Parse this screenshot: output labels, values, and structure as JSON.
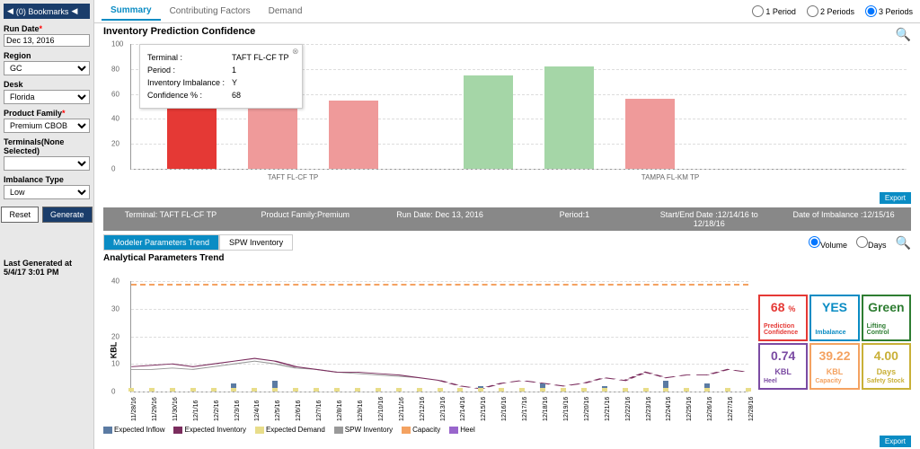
{
  "sidebar": {
    "bookmarks": "(0) Bookmarks",
    "fields": {
      "runDate": {
        "label": "Run Date",
        "value": "Dec 13, 2016",
        "req": true
      },
      "region": {
        "label": "Region",
        "value": "GC",
        "req": false
      },
      "desk": {
        "label": "Desk",
        "value": "Florida",
        "req": false
      },
      "productFamily": {
        "label": "Product Family",
        "value": "Premium CBOB",
        "req": true
      },
      "terminals": {
        "label": "Terminals(None Selected)",
        "value": "",
        "req": false
      },
      "imbalanceType": {
        "label": "Imbalance Type",
        "value": "Low",
        "req": false
      }
    },
    "reset": "Reset",
    "generate": "Generate",
    "lastGen": "Last Generated at 5/4/17 3:01 PM"
  },
  "tabs": {
    "summary": "Summary",
    "contributing": "Contributing Factors",
    "demand": "Demand"
  },
  "periods": {
    "p1": "1 Period",
    "p2": "2 Periods",
    "p3": "3 Periods",
    "selected": "p3"
  },
  "chart1": {
    "title": "Inventory Prediction Confidence",
    "ylim": [
      0,
      100
    ],
    "yticks": [
      0,
      20,
      40,
      60,
      80,
      100
    ],
    "bars": [
      {
        "v": 68,
        "color": "#e53935"
      },
      {
        "v": 48,
        "color": "#ef9a9a"
      },
      {
        "v": 55,
        "color": "#ef9a9a"
      },
      {
        "v": 75,
        "color": "#a5d6a7"
      },
      {
        "v": 82,
        "color": "#a5d6a7"
      },
      {
        "v": 56,
        "color": "#ef9a9a"
      }
    ],
    "xlabels": [
      "TAFT FL-CF TP",
      "TAMPA FL-KM TP"
    ],
    "tooltip": {
      "terminal": "TAFT FL-CF TP",
      "period": "1",
      "imbalance": "Y",
      "confidence": "68"
    }
  },
  "infobar": {
    "terminal": "Terminal: TAFT FL-CF TP",
    "pf": "Product Family:Premium",
    "rd": "Run Date: Dec 13, 2016",
    "period": "Period:1",
    "dates": "Start/End Date :12/14/16 to 12/18/16",
    "doi": "Date of Imbalance :12/15/16"
  },
  "subtabs": {
    "a": "Modeler Parameters Trend",
    "b": "SPW Inventory"
  },
  "vd": {
    "v": "Volume",
    "d": "Days"
  },
  "chart2": {
    "title": "Analytical Parameters Trend",
    "ylabel": "KBL",
    "ylim": [
      0,
      40
    ],
    "yticks": [
      0,
      10,
      20,
      30,
      40
    ],
    "dates": [
      "11/28/16",
      "11/29/16",
      "11/30/16",
      "12/1/16",
      "12/2/16",
      "12/3/16",
      "12/4/16",
      "12/5/16",
      "12/6/16",
      "12/7/16",
      "12/8/16",
      "12/9/16",
      "12/10/16",
      "12/11/16",
      "12/12/16",
      "12/13/16",
      "12/14/16",
      "12/15/16",
      "12/16/16",
      "12/17/16",
      "12/18/16",
      "12/19/16",
      "12/20/16",
      "12/21/16",
      "12/22/16",
      "12/23/16",
      "12/24/16",
      "12/25/16",
      "12/26/16",
      "12/27/16",
      "12/28/16"
    ],
    "capacity": 39,
    "inventory": [
      9,
      9.5,
      10,
      9,
      10,
      11,
      12,
      11,
      9,
      8,
      7,
      7,
      6.5,
      6,
      5,
      4,
      2,
      1,
      3,
      4,
      3,
      2,
      3,
      5,
      4,
      7,
      5,
      6,
      6,
      8,
      7
    ],
    "spw": [
      8,
      8,
      8.5,
      8,
      9,
      10,
      11,
      10,
      8.5,
      8,
      7,
      6.5,
      6,
      5.5,
      5,
      0,
      0,
      0,
      0,
      0,
      0,
      0,
      0,
      0,
      0,
      0,
      0,
      0,
      0,
      0,
      0
    ],
    "inflow_bars": [
      0,
      0,
      0,
      0,
      0,
      3,
      0,
      4,
      0,
      0,
      0,
      0,
      0,
      0,
      0,
      0,
      0,
      2,
      0,
      0,
      3,
      0,
      0,
      2,
      0,
      0,
      4,
      0,
      3,
      0,
      0
    ],
    "colors": {
      "inflow": "#5b7ba3",
      "inventory": "#7b2d5e",
      "demand": "#e8dd8a",
      "spw": "#999",
      "capacity": "#f4a261",
      "heel": "#9966cc"
    }
  },
  "legend": {
    "inflow": "Expected Inflow",
    "inventory": "Expected Inventory",
    "demand": "Expected Demand",
    "spw": "SPW Inventory",
    "capacity": "Capacity",
    "heel": "Heel"
  },
  "kpis": [
    {
      "v": "68",
      "u": "%",
      "l": "Prediction Confidence",
      "c": "#e53935"
    },
    {
      "v": "YES",
      "u": "",
      "l": "Imbalance",
      "c": "#0a8cc4"
    },
    {
      "v": "Green",
      "u": "",
      "l": "Lifting Control",
      "c": "#2e7d32"
    },
    {
      "v": "0.74",
      "u": "KBL",
      "l": "Heel",
      "c": "#7b4ba3"
    },
    {
      "v": "39.22",
      "u": "KBL",
      "l": "Capacity",
      "c": "#f4a261"
    },
    {
      "v": "4.00",
      "u": "Days",
      "l": "Safety Stock",
      "c": "#c9b037"
    }
  ],
  "export": "Export"
}
